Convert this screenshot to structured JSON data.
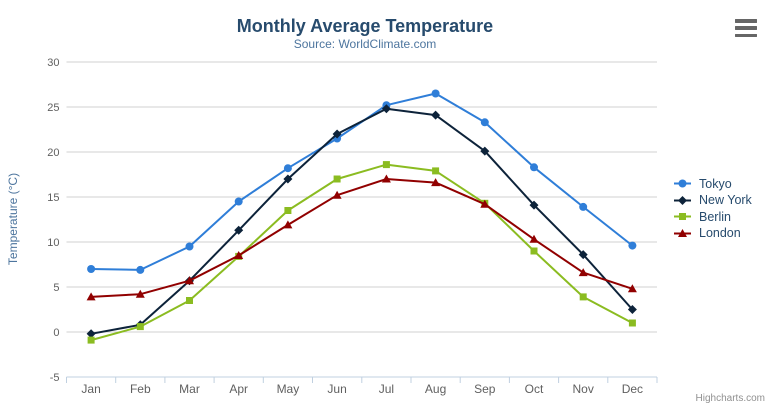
{
  "export_menu": {
    "icon": "hamburger-icon"
  },
  "credits": {
    "label": "Highcharts.com"
  },
  "chart_data": {
    "type": "line",
    "title": "Monthly Average Temperature",
    "subtitle": "Source: WorldClimate.com",
    "ylabel": "Temperature (°C)",
    "xlabel": "",
    "ylim": [
      -5,
      30
    ],
    "ytick_step": 5,
    "grid": true,
    "legend_position": "right",
    "axis_colors": {
      "grid": "#d0d0d0",
      "axis_line": "#c0d0e0",
      "tick_label": "#606060"
    },
    "categories": [
      "Jan",
      "Feb",
      "Mar",
      "Apr",
      "May",
      "Jun",
      "Jul",
      "Aug",
      "Sep",
      "Oct",
      "Nov",
      "Dec"
    ],
    "series": [
      {
        "name": "Tokyo",
        "color": "#2f7ed8",
        "marker": "circle",
        "values": [
          7.0,
          6.9,
          9.5,
          14.5,
          18.2,
          21.5,
          25.2,
          26.5,
          23.3,
          18.3,
          13.9,
          9.6
        ]
      },
      {
        "name": "New York",
        "color": "#0d233a",
        "marker": "diamond",
        "values": [
          -0.2,
          0.8,
          5.7,
          11.3,
          17.0,
          22.0,
          24.8,
          24.1,
          20.1,
          14.1,
          8.6,
          2.5
        ]
      },
      {
        "name": "Berlin",
        "color": "#8bbc21",
        "marker": "square",
        "values": [
          -0.9,
          0.6,
          3.5,
          8.4,
          13.5,
          17.0,
          18.6,
          17.9,
          14.3,
          9.0,
          3.9,
          1.0
        ]
      },
      {
        "name": "London",
        "color": "#910000",
        "marker": "triangle",
        "values": [
          3.9,
          4.2,
          5.7,
          8.5,
          11.9,
          15.2,
          17.0,
          16.6,
          14.2,
          10.3,
          6.6,
          4.8
        ]
      }
    ]
  }
}
